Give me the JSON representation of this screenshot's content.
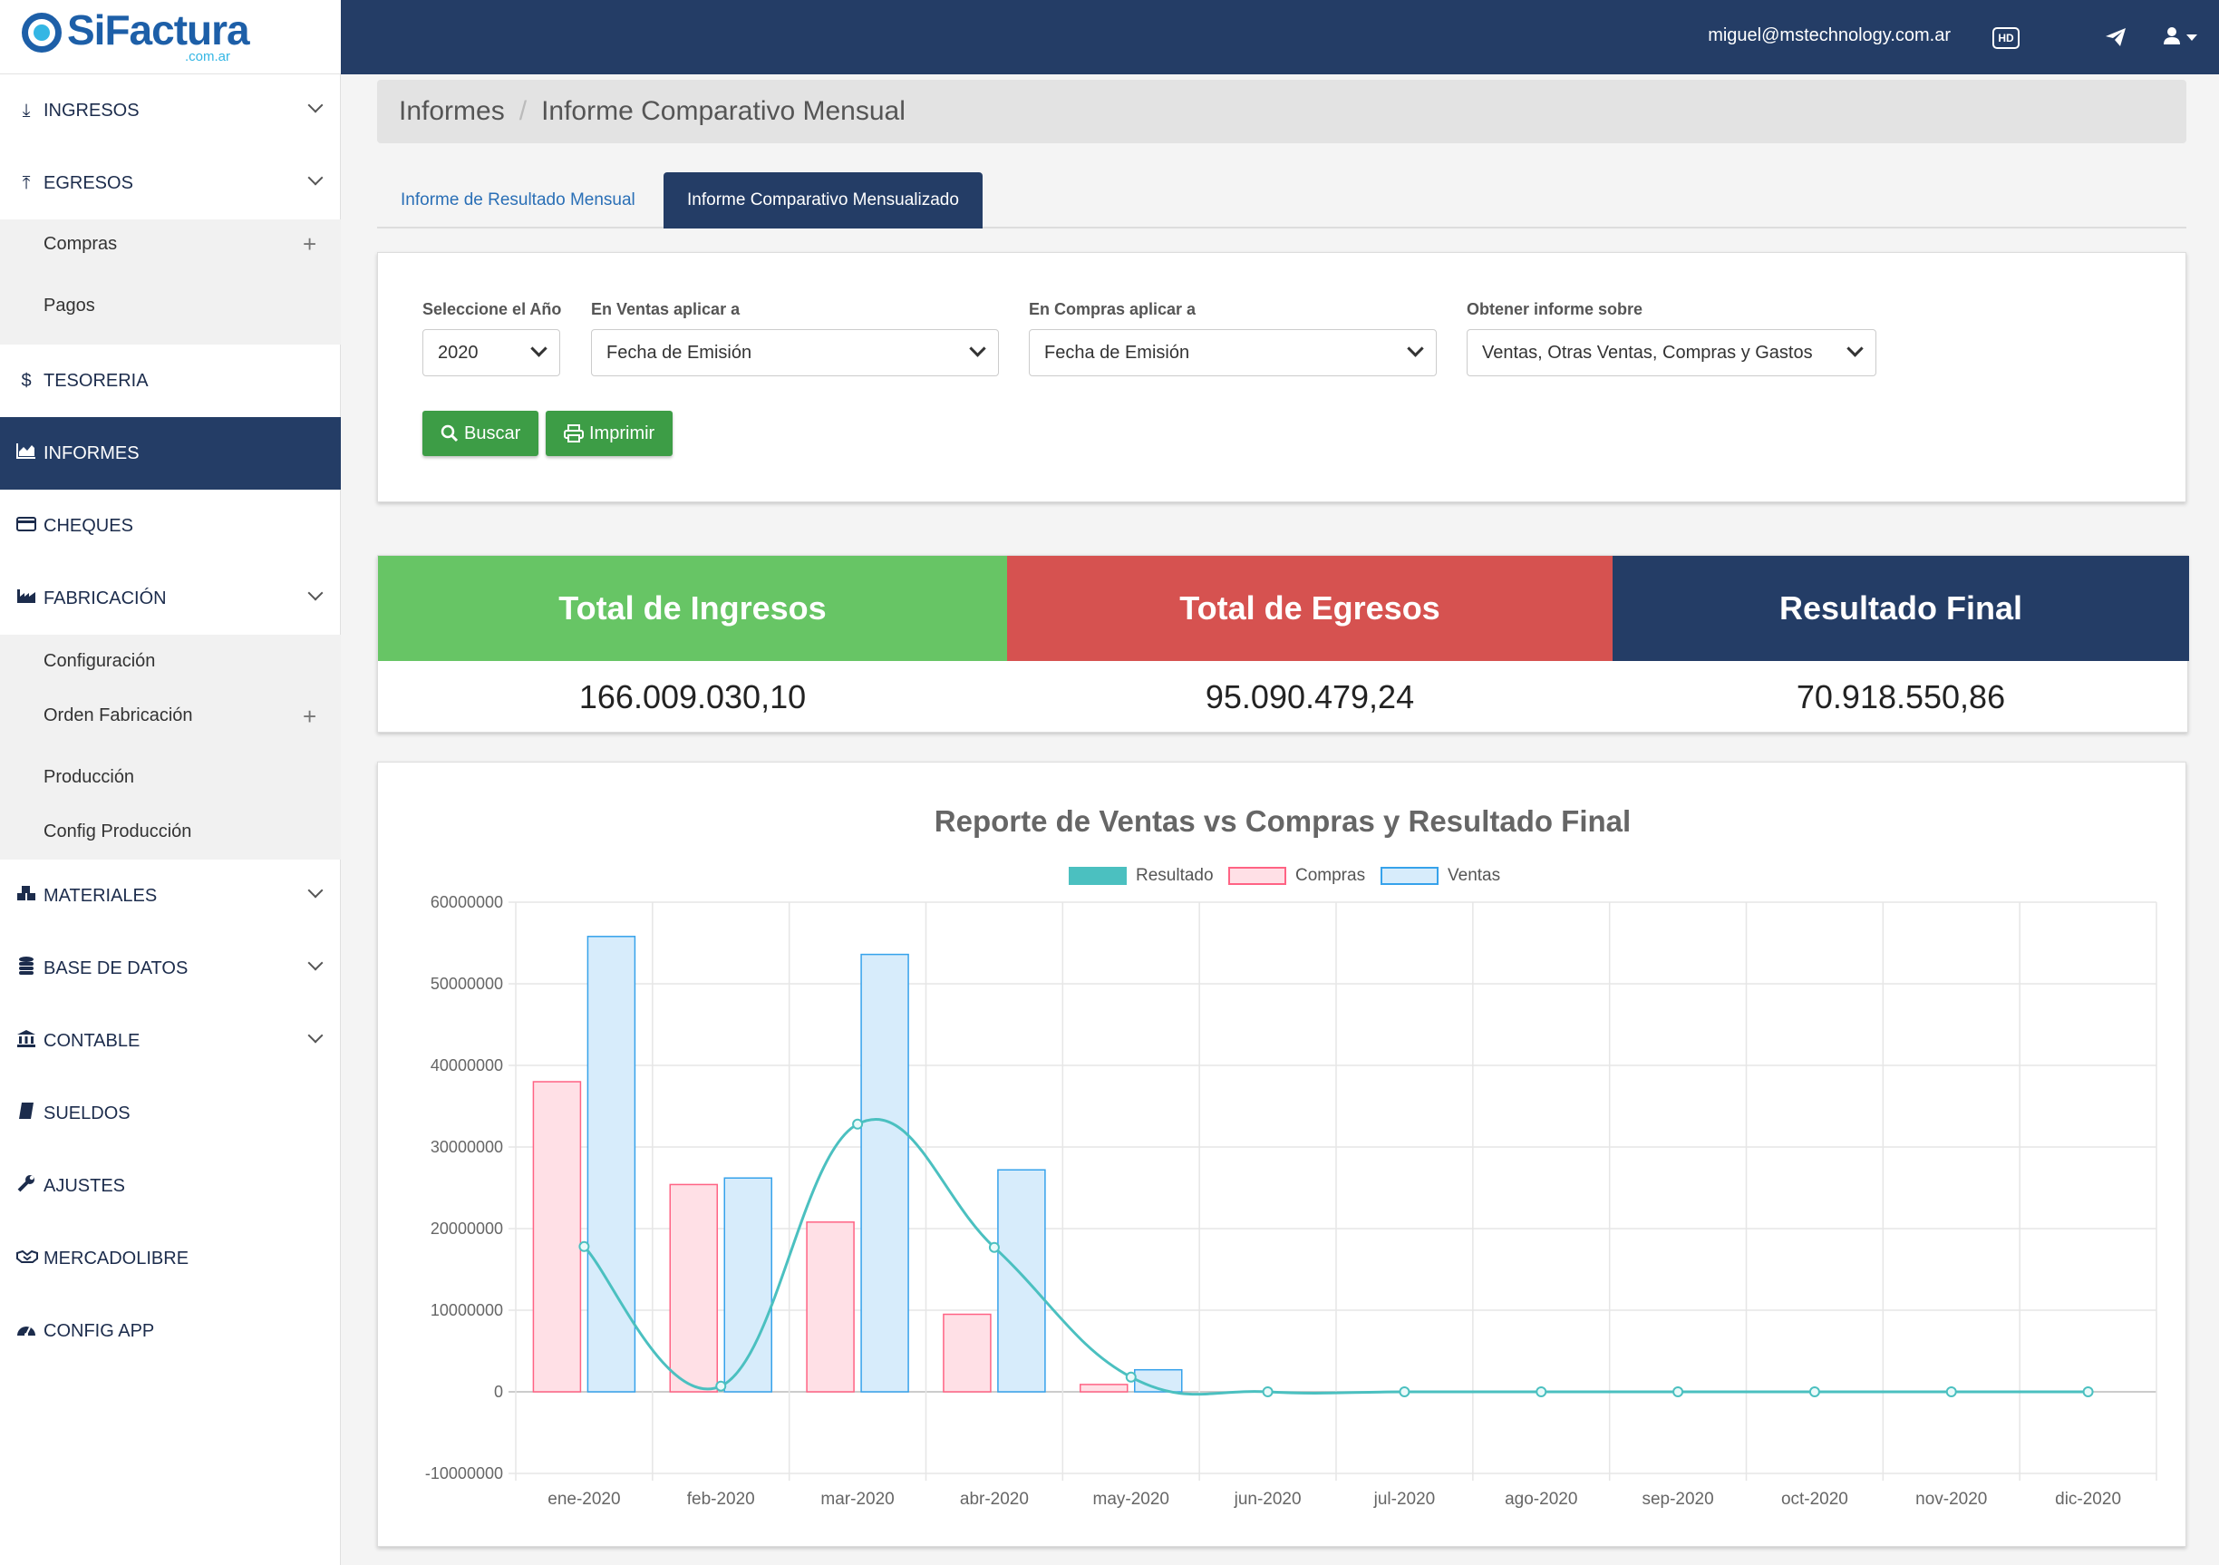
{
  "brand": {
    "name": "SiFactura",
    "sub": ".com.ar"
  },
  "topbar": {
    "email": "miguel@mstechnology.com.ar",
    "hd_label": "HD"
  },
  "sidebar": {
    "items": [
      {
        "label": "INGRESOS",
        "icon": "download-icon"
      },
      {
        "label": "EGRESOS",
        "icon": "upload-icon"
      },
      {
        "label": "TESORERIA",
        "icon": "dollar-icon"
      },
      {
        "label": "INFORMES",
        "icon": "area-chart-icon"
      },
      {
        "label": "CHEQUES",
        "icon": "credit-card-icon"
      },
      {
        "label": "FABRICACIÓN",
        "icon": "industry-icon"
      },
      {
        "label": "MATERIALES",
        "icon": "cubes-icon"
      },
      {
        "label": "BASE DE DATOS",
        "icon": "database-icon"
      },
      {
        "label": "CONTABLE",
        "icon": "bank-icon"
      },
      {
        "label": "SUELDOS",
        "icon": "book-icon"
      },
      {
        "label": "AJUSTES",
        "icon": "wrench-icon"
      },
      {
        "label": "MERCADOLIBRE",
        "icon": "handshake-icon"
      },
      {
        "label": "CONFIG APP",
        "icon": "dashboard-icon"
      }
    ],
    "egresos_sub": [
      "Compras",
      "Pagos"
    ],
    "fabricacion_sub": [
      "Configuración",
      "Orden Fabricación",
      "Producción",
      "Config Producción"
    ]
  },
  "breadcrumb": {
    "root": "Informes",
    "current": "Informe Comparativo Mensual"
  },
  "tabs": [
    "Informe de Resultado Mensual",
    "Informe Comparativo Mensualizado"
  ],
  "filters": {
    "year": {
      "label": "Seleccione el Año",
      "value": "2020"
    },
    "ventas": {
      "label": "En Ventas aplicar a",
      "value": "Fecha de Emisión"
    },
    "compras": {
      "label": "En Compras aplicar a",
      "value": "Fecha de Emisión"
    },
    "informe": {
      "label": "Obtener informe sobre",
      "value": "Ventas, Otras Ventas, Compras y Gastos"
    },
    "buscar": "Buscar",
    "imprimir": "Imprimir"
  },
  "totals": {
    "ingresos": {
      "label": "Total de Ingresos",
      "value": "166.009.030,10",
      "color": "#67c565"
    },
    "egresos": {
      "label": "Total de Egresos",
      "value": "95.090.479,24",
      "color": "#d65250"
    },
    "resultado": {
      "label": "Resultado Final",
      "value": "70.918.550,86",
      "color": "#243d66"
    }
  },
  "chart_data": {
    "type": "bar",
    "title": "Reporte de Ventas vs Compras y Resultado Final",
    "categories": [
      "ene-2020",
      "feb-2020",
      "mar-2020",
      "abr-2020",
      "may-2020",
      "jun-2020",
      "jul-2020",
      "ago-2020",
      "sep-2020",
      "oct-2020",
      "nov-2020",
      "dic-2020"
    ],
    "series": [
      {
        "name": "Resultado",
        "type": "line",
        "color": "#4bc0c0",
        "values": [
          17800000,
          700000,
          32800000,
          17700000,
          1800000,
          0,
          0,
          0,
          0,
          0,
          0,
          0
        ]
      },
      {
        "name": "Compras",
        "type": "bar",
        "color": "#ff6384",
        "values": [
          38000000,
          25400000,
          20800000,
          9500000,
          900000,
          0,
          0,
          0,
          0,
          0,
          0,
          0
        ]
      },
      {
        "name": "Ventas",
        "type": "bar",
        "color": "#36a2eb",
        "values": [
          55800000,
          26200000,
          53600000,
          27200000,
          2700000,
          0,
          0,
          0,
          0,
          0,
          0,
          0
        ]
      }
    ],
    "ylim": [
      -10000000,
      60000000
    ],
    "yticks": [
      "60000000",
      "50000000",
      "40000000",
      "30000000",
      "20000000",
      "10000000",
      "0",
      "-10000000"
    ],
    "grid": true,
    "legend": "top"
  }
}
